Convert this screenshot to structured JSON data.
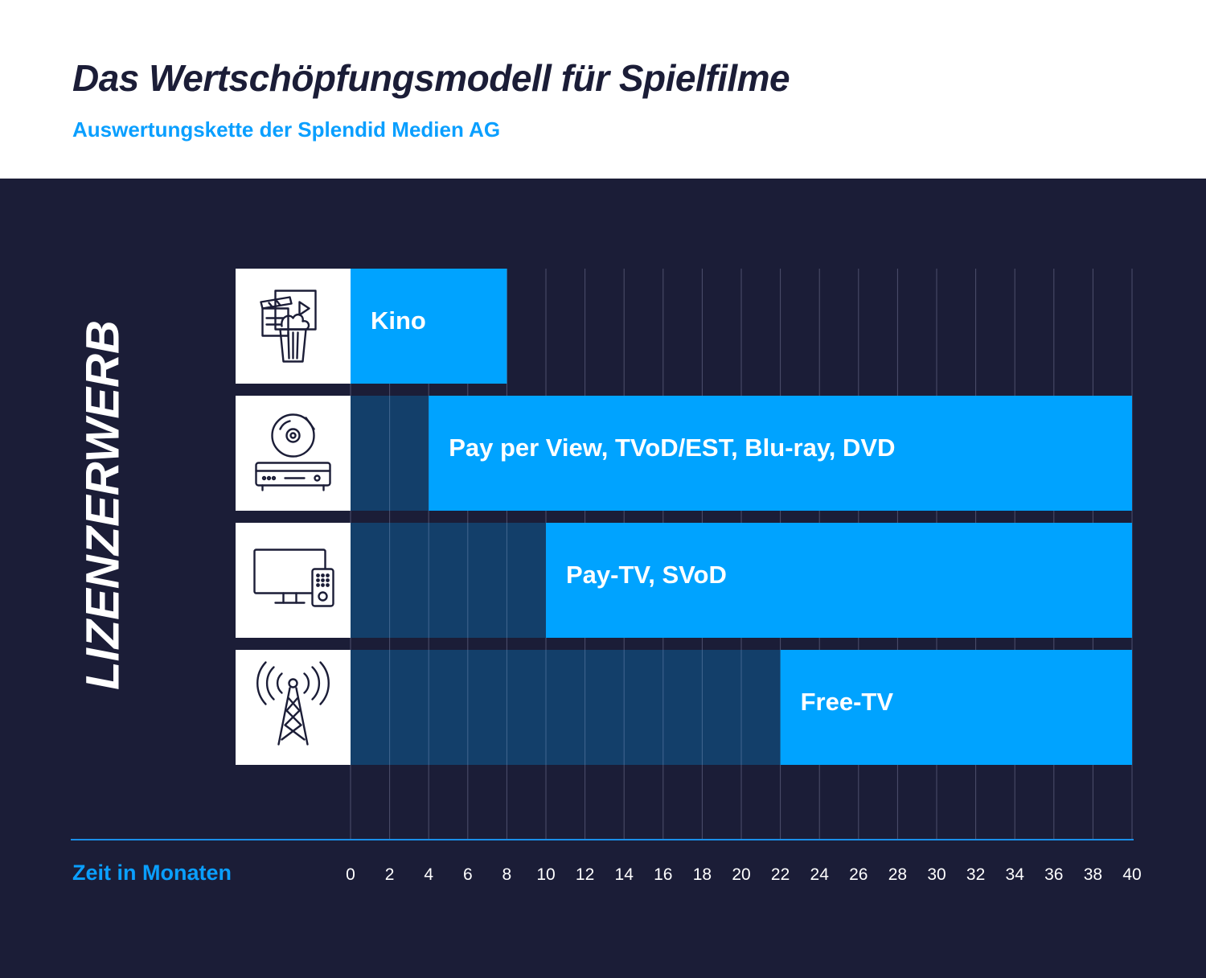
{
  "header": {
    "title": "Das Wertschöpfungsmodell für Spielfilme",
    "subtitle": "Auswertungskette der Splendid Medien AG"
  },
  "side_label": "LIZENZERWERB",
  "colors": {
    "background_dark": "#1b1d37",
    "bar_active": "#00a3ff",
    "bar_waiting": "#12426f",
    "accent_text": "#0a9fff",
    "icon_box": "#ffffff",
    "grid": "#5a5d7a"
  },
  "chart_data": {
    "type": "bar",
    "orientation": "horizontal",
    "title": "Das Wertschöpfungsmodell für Spielfilme",
    "subtitle": "Auswertungskette der Splendid Medien AG",
    "xlabel": "Zeit in Monaten",
    "ylabel": "LIZENZERWERB",
    "xlim": [
      0,
      40
    ],
    "xticks": [
      0,
      2,
      4,
      6,
      8,
      10,
      12,
      14,
      16,
      18,
      20,
      22,
      24,
      26,
      28,
      30,
      32,
      34,
      36,
      38,
      40
    ],
    "grid": true,
    "rows": [
      {
        "label": "Kino",
        "icon": "cinema-icon",
        "wait_from": 0,
        "start": 0,
        "end": 8
      },
      {
        "label": "Pay per View, TVoD/EST, Blu-ray, DVD",
        "icon": "disc-player-icon",
        "wait_from": 0,
        "start": 4,
        "end": 40
      },
      {
        "label": "Pay-TV, SVoD",
        "icon": "tv-remote-icon",
        "wait_from": 0,
        "start": 10,
        "end": 40
      },
      {
        "label": "Free-TV",
        "icon": "antenna-tower-icon",
        "wait_from": 0,
        "start": 22,
        "end": 40
      }
    ]
  }
}
